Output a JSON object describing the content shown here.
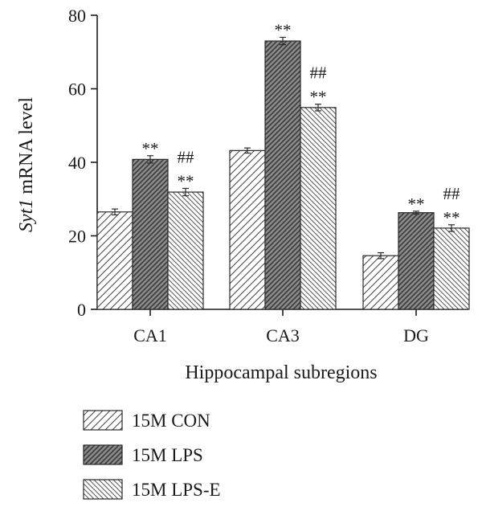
{
  "chart_data": {
    "type": "bar",
    "categories": [
      "CA1",
      "CA3",
      "DG"
    ],
    "series": [
      {
        "name": "15M CON",
        "values": [
          26.5,
          43.2,
          14.6
        ],
        "errors": [
          0.8,
          0.7,
          0.8
        ],
        "pattern": "hatch-fwd"
      },
      {
        "name": "15M LPS",
        "values": [
          40.8,
          73.0,
          26.3
        ],
        "errors": [
          1.0,
          1.0,
          0.4
        ],
        "pattern": "hatch-dark"
      },
      {
        "name": "15M LPS-E",
        "values": [
          31.9,
          54.9,
          22.1
        ],
        "errors": [
          1.0,
          0.9,
          0.9
        ],
        "pattern": "hatch-back"
      }
    ],
    "annotations": [
      {
        "series": 1,
        "category": 0,
        "lines": [
          "**"
        ]
      },
      {
        "series": 2,
        "category": 0,
        "lines": [
          "##",
          "**"
        ]
      },
      {
        "series": 1,
        "category": 1,
        "lines": [
          "**"
        ]
      },
      {
        "series": 2,
        "category": 1,
        "lines": [
          "##",
          "**"
        ]
      },
      {
        "series": 1,
        "category": 2,
        "lines": [
          "**"
        ]
      },
      {
        "series": 2,
        "category": 2,
        "lines": [
          "##",
          "**"
        ]
      }
    ],
    "title": "",
    "xlabel": "Hippocampal subregions",
    "ylabel_italic": "Syt1",
    "ylabel_rest": " mRNA level",
    "ylim": [
      0,
      80
    ],
    "yticks": [
      0,
      20,
      40,
      60,
      80
    ],
    "grid": false,
    "legend_position": "bottom-left"
  }
}
